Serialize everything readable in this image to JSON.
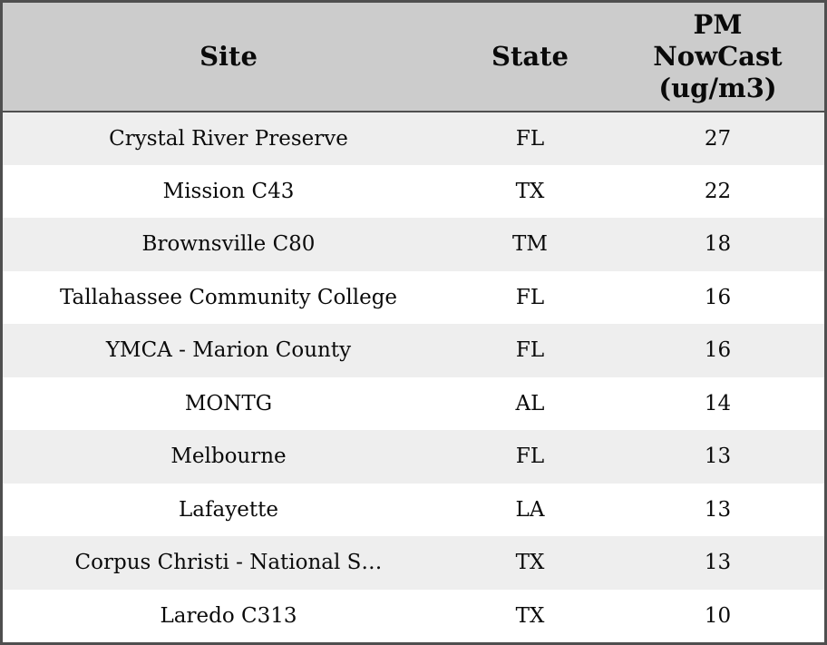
{
  "chart_data": {
    "type": "table",
    "title": "",
    "columns": [
      "Site",
      "State",
      "PM NowCast (ug/m3)"
    ],
    "rows": [
      [
        "Crystal River Preserve",
        "FL",
        "27"
      ],
      [
        "Mission C43",
        "TX",
        "22"
      ],
      [
        "Brownsville C80",
        "TM",
        "18"
      ],
      [
        "Tallahassee Community College",
        "FL",
        "16"
      ],
      [
        "YMCA - Marion County",
        "FL",
        "16"
      ],
      [
        "MONTG",
        "AL",
        "14"
      ],
      [
        "Melbourne",
        "FL",
        "13"
      ],
      [
        "Lafayette",
        "LA",
        "13"
      ],
      [
        "Corpus Christi - National S…",
        "TX",
        "13"
      ],
      [
        "Laredo C313",
        "TX",
        "10"
      ]
    ],
    "layout": {
      "striped": true,
      "header_bg": "#cccccc",
      "row_alt_bg": "#eeeeee",
      "row_bg": "#ffffff",
      "border_color": "#4f4f4f",
      "text_color": "#0a0a0a"
    }
  }
}
